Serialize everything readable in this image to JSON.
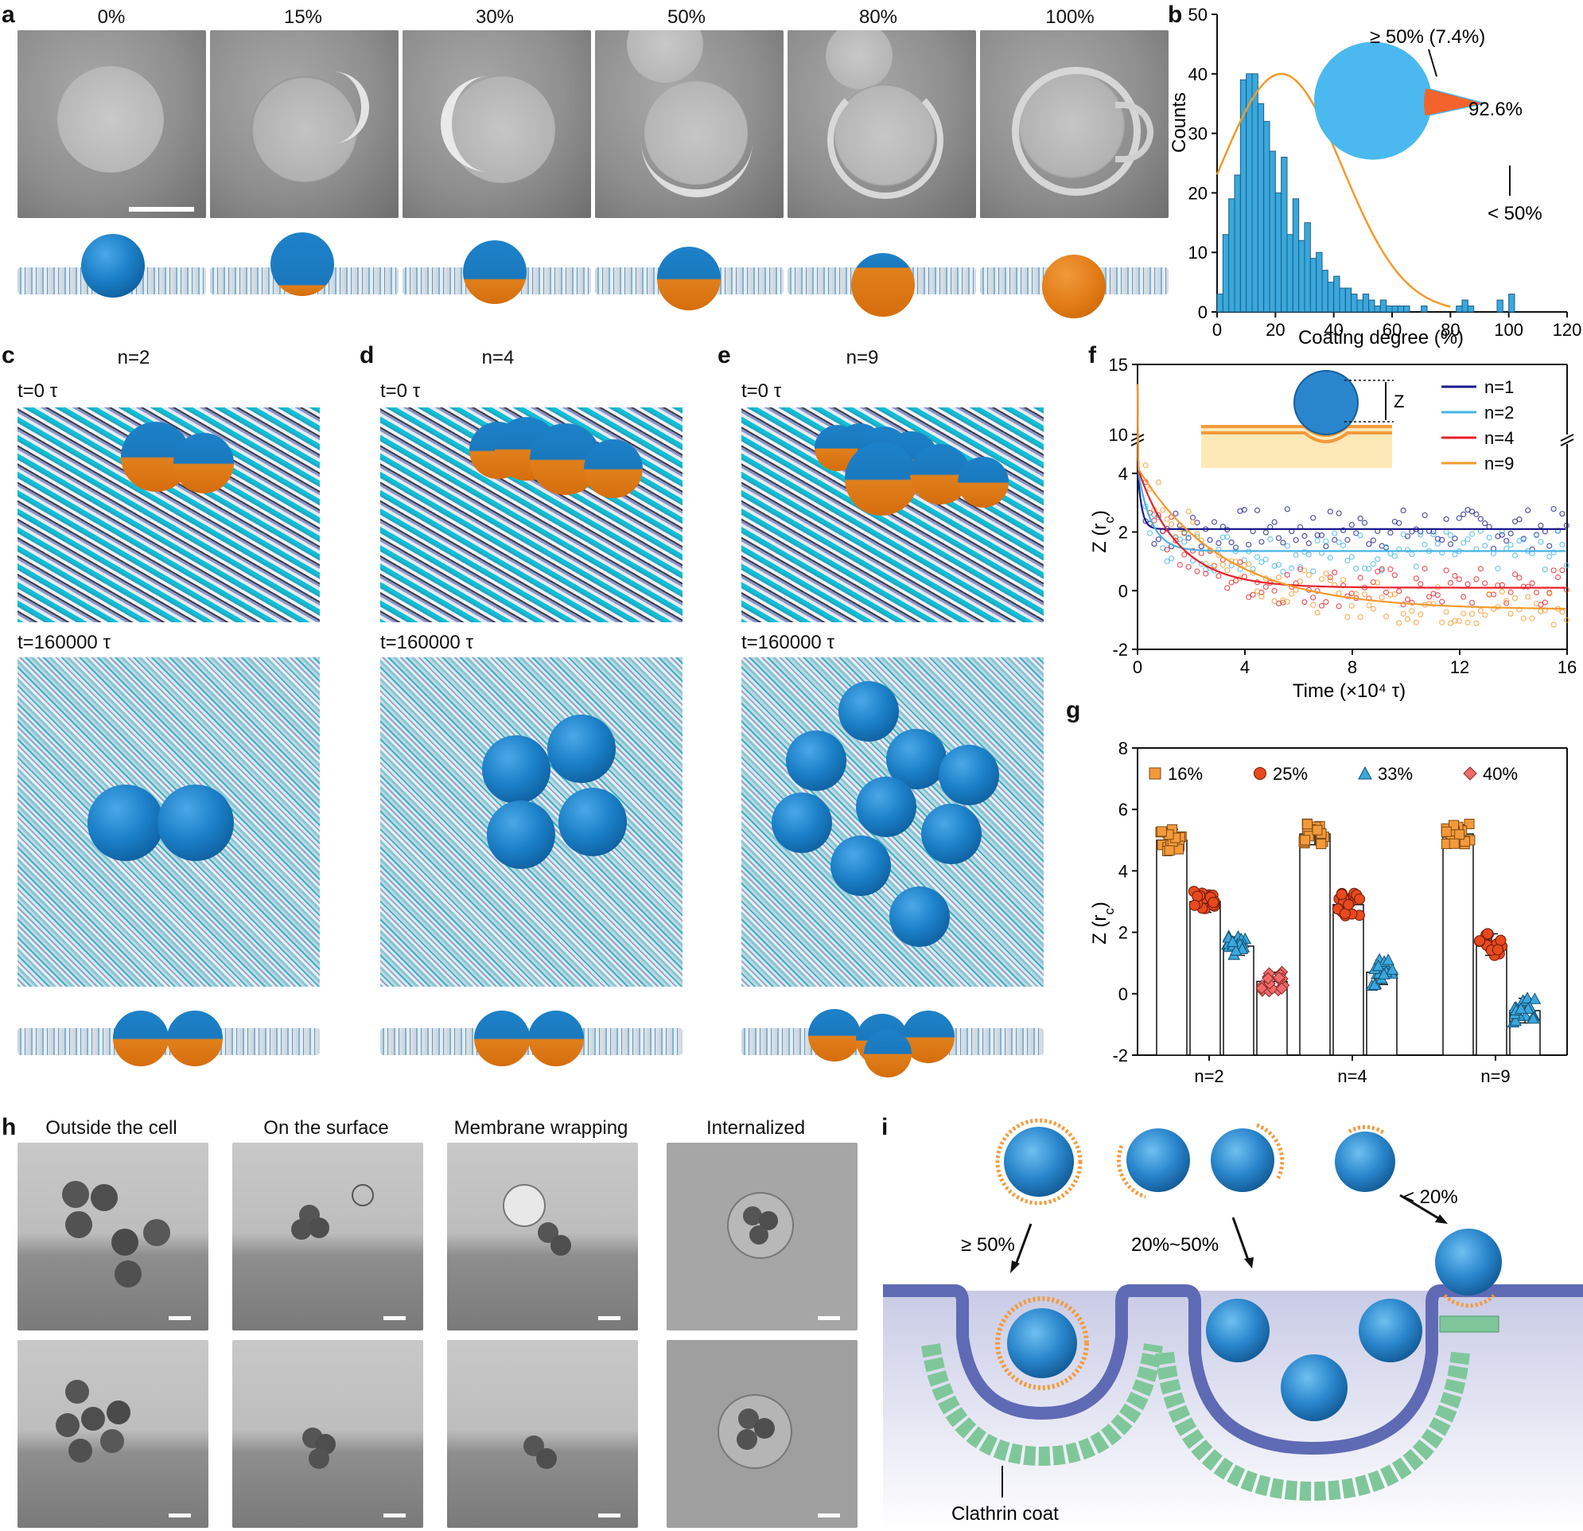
{
  "panels": {
    "a": "a",
    "b": "b",
    "c": "c",
    "d": "d",
    "e": "e",
    "f": "f",
    "g": "g",
    "h": "h",
    "i": "i"
  },
  "panel_a": {
    "coatings": [
      "0%",
      "15%",
      "30%",
      "50%",
      "80%",
      "100%"
    ]
  },
  "panel_c": {
    "title": "n=2",
    "t0": "t=0 τ",
    "t1": "t=160000 τ"
  },
  "panel_d": {
    "title": "n=4",
    "t0": "t=0 τ",
    "t1": "t=160000 τ"
  },
  "panel_e": {
    "title": "n=9",
    "t0": "t=0 τ",
    "t1": "t=160000 τ"
  },
  "panel_h": {
    "headers": [
      "Outside the cell",
      "On the surface",
      "Membrane wrapping",
      "Internalized"
    ]
  },
  "panel_i": {
    "label_ge50": "≥ 50%",
    "label_mid": "20%~50%",
    "label_lt20": "< 20%",
    "label_clathrin": "Clathrin coat"
  },
  "colors": {
    "blue_np": "#1b7fc7",
    "orange": "#e07a14",
    "hist": "#3aa8dc",
    "fit": "#f39a2b",
    "pie_major": "#4bb9ef",
    "pie_minor": "#f2642c",
    "membrane": "#6a74b8",
    "clathrin": "#7fc79a"
  },
  "chart_data": [
    {
      "type": "bar",
      "panel": "b",
      "xlabel": "Coating degree (%)",
      "ylabel": "Counts",
      "xlim": [
        0,
        120
      ],
      "ylim": [
        0,
        50
      ],
      "xticks": [
        0,
        20,
        40,
        60,
        80,
        100,
        120
      ],
      "yticks": [
        0,
        10,
        20,
        30,
        40,
        50
      ],
      "bin_width": 2,
      "bins": [
        {
          "x": 1,
          "y": 3
        },
        {
          "x": 3,
          "y": 13
        },
        {
          "x": 5,
          "y": 19
        },
        {
          "x": 7,
          "y": 23
        },
        {
          "x": 9,
          "y": 39
        },
        {
          "x": 11,
          "y": 40
        },
        {
          "x": 13,
          "y": 40
        },
        {
          "x": 15,
          "y": 35
        },
        {
          "x": 17,
          "y": 32
        },
        {
          "x": 19,
          "y": 27
        },
        {
          "x": 21,
          "y": 20
        },
        {
          "x": 23,
          "y": 26
        },
        {
          "x": 25,
          "y": 13
        },
        {
          "x": 27,
          "y": 19
        },
        {
          "x": 29,
          "y": 12
        },
        {
          "x": 31,
          "y": 15
        },
        {
          "x": 33,
          "y": 9
        },
        {
          "x": 35,
          "y": 10
        },
        {
          "x": 37,
          "y": 7
        },
        {
          "x": 39,
          "y": 5
        },
        {
          "x": 41,
          "y": 6
        },
        {
          "x": 43,
          "y": 4
        },
        {
          "x": 45,
          "y": 4
        },
        {
          "x": 47,
          "y": 3
        },
        {
          "x": 49,
          "y": 2
        },
        {
          "x": 51,
          "y": 3
        },
        {
          "x": 53,
          "y": 2
        },
        {
          "x": 55,
          "y": 1
        },
        {
          "x": 57,
          "y": 2
        },
        {
          "x": 59,
          "y": 1
        },
        {
          "x": 61,
          "y": 1
        },
        {
          "x": 63,
          "y": 1
        },
        {
          "x": 65,
          "y": 1
        },
        {
          "x": 71,
          "y": 1
        },
        {
          "x": 83,
          "y": 1
        },
        {
          "x": 85,
          "y": 2
        },
        {
          "x": 87,
          "y": 1
        },
        {
          "x": 97,
          "y": 2
        },
        {
          "x": 101,
          "y": 3
        }
      ],
      "fit": {
        "type": "gaussian",
        "peak": 40,
        "mean": 22,
        "sd": 21
      },
      "pie": {
        "slices": [
          {
            "label": "< 50%",
            "value": 92.6,
            "text": "92.6%"
          },
          {
            "label": "≥ 50% (7.4%)",
            "value": 7.4
          }
        ]
      }
    },
    {
      "type": "scatter",
      "panel": "f",
      "xlabel": "Time (×10⁴ τ)",
      "ylabel": "Z (r",
      "ylabel_sub": "c",
      "xlim": [
        0,
        16
      ],
      "ylim_lower": [
        -2,
        5
      ],
      "ylim_upper": [
        10,
        15
      ],
      "xticks": [
        0,
        4,
        8,
        12,
        16
      ],
      "yticks_lower": [
        -2,
        0,
        2,
        4
      ],
      "yticks_upper": [
        10,
        15
      ],
      "inset_label": "Z",
      "series": [
        {
          "name": "n=1",
          "color": "#1a1a8c",
          "plateau": 2.1,
          "tau": 0.15
        },
        {
          "name": "n=2",
          "color": "#46b4e6",
          "plateau": 1.35,
          "tau": 0.5
        },
        {
          "name": "n=4",
          "color": "#e8202a",
          "plateau": 0.1,
          "tau": 1.5
        },
        {
          "name": "n=9",
          "color": "#f39a2b",
          "plateau": -0.65,
          "tau": 3.2
        }
      ]
    },
    {
      "type": "bar",
      "panel": "g",
      "categories": [
        "n=2",
        "n=4",
        "n=9"
      ],
      "ylabel": "Z (r",
      "ylabel_sub": "c",
      "ylim": [
        -2,
        8
      ],
      "yticks": [
        -2,
        0,
        2,
        4,
        6,
        8
      ],
      "series": [
        {
          "name": "16%",
          "color": "#f39a3b",
          "marker": "square",
          "values": [
            5.0,
            5.2,
            5.2
          ],
          "err": [
            0.35,
            0.35,
            0.3
          ]
        },
        {
          "name": "25%",
          "color": "#e8491d",
          "marker": "circle",
          "values": [
            3.0,
            2.9,
            1.6
          ],
          "err": [
            0.35,
            0.35,
            0.35
          ]
        },
        {
          "name": "33%",
          "color": "#3aa8dc",
          "marker": "triangle",
          "values": [
            1.55,
            0.7,
            -0.55
          ],
          "err": [
            0.3,
            0.4,
            0.4
          ]
        },
        {
          "name": "40%",
          "color": "#f06a6a",
          "marker": "diamond",
          "values": [
            0.4,
            null,
            null
          ],
          "err": [
            0.3,
            null,
            null
          ]
        }
      ]
    }
  ]
}
